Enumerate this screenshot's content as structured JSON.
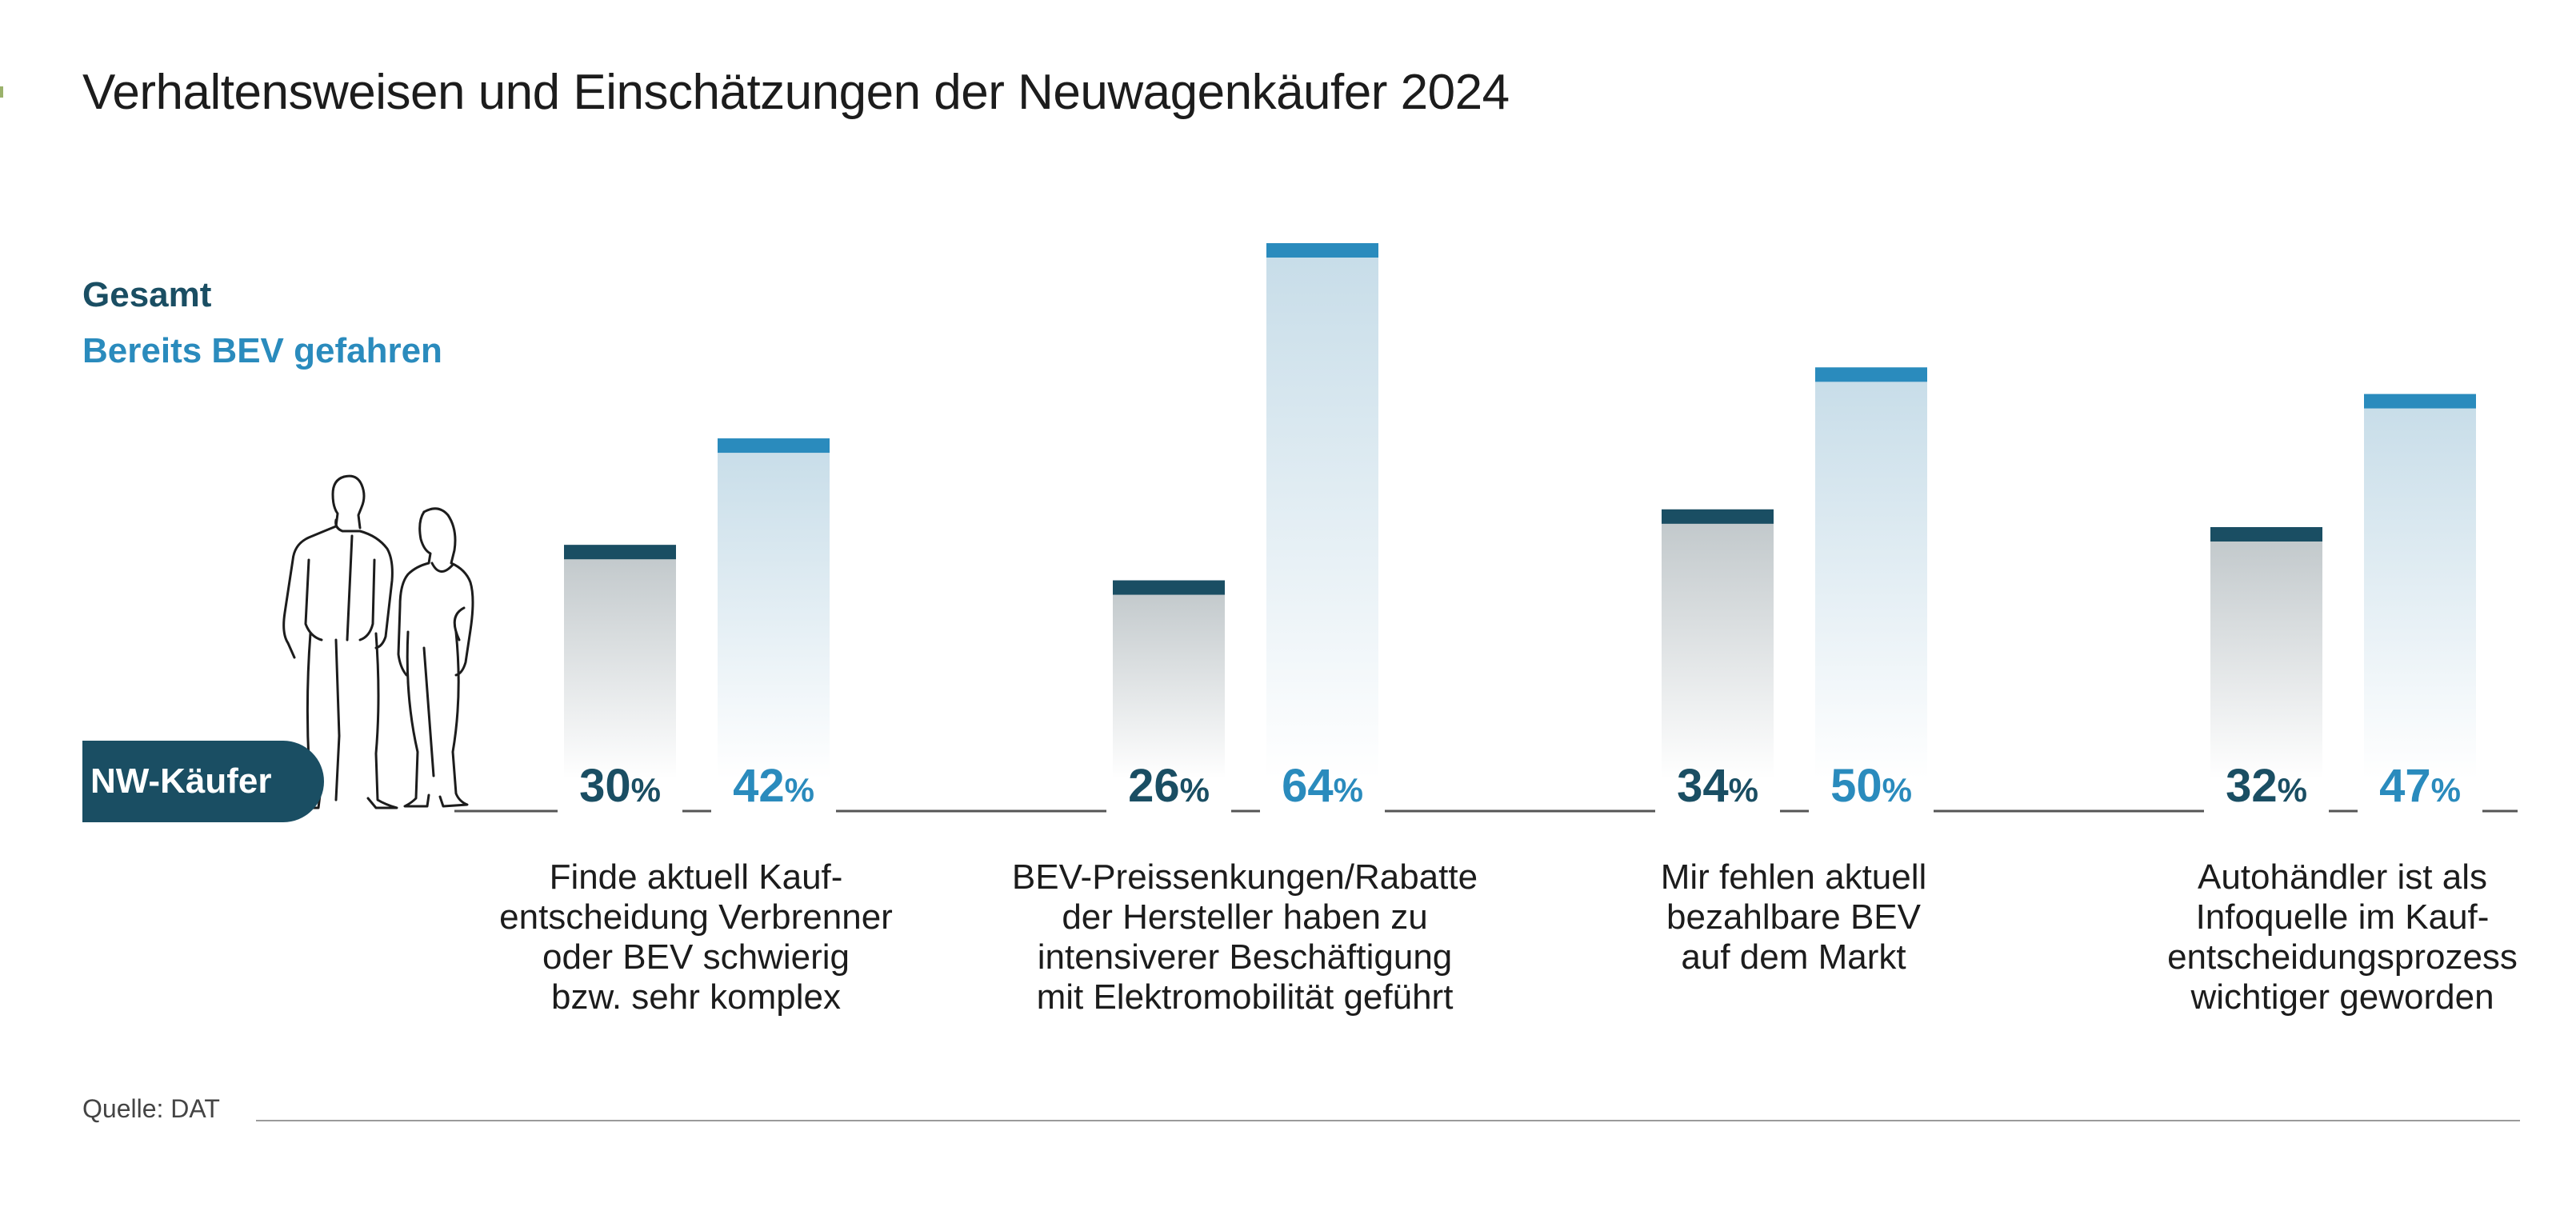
{
  "title": "Verhaltensweisen und Einschätzungen der Neuwagenkäufer 2024",
  "badge": "NW-Käufer",
  "source": "Quelle: DAT",
  "colors": {
    "gesamt": "#1a4e63",
    "bev": "#2a8bbd",
    "gesamt_fill_top": "#c2c9cc",
    "bev_fill_top": "#c8dde8"
  },
  "icons": [
    "people-illustration-icon"
  ],
  "chart_data": {
    "type": "bar",
    "legend": [
      "Gesamt",
      "Bereits BEV gefahren"
    ],
    "legend_position": "top-left",
    "unit": "%",
    "categories": [
      "Finde aktuell Kauf-\nentscheidung Verbrenner\noder BEV schwierig\nbzw. sehr komplex",
      "BEV-Preissenkungen/Rabatte\nder Hersteller haben zu\nintensiverer Beschäftigung\nmit Elektromobilität geführt",
      "Mir fehlen aktuell\nbezahlbare BEV\nauf dem Markt",
      "Autohändler ist als\nInfoquelle im Kauf-\nentscheidungsprozess\nwichtiger geworden"
    ],
    "series": [
      {
        "name": "Gesamt",
        "values": [
          30,
          26,
          34,
          32
        ]
      },
      {
        "name": "Bereits BEV gefahren",
        "values": [
          42,
          64,
          50,
          47
        ]
      }
    ],
    "ylim": [
      0,
      64
    ],
    "grid": false
  }
}
